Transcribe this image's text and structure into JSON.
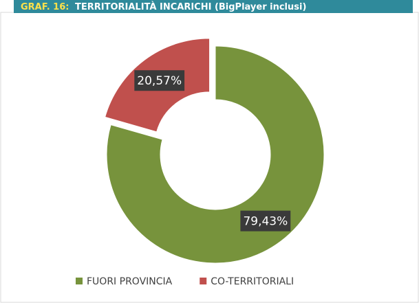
{
  "chart_data": {
    "type": "pie",
    "donut": true,
    "title_label": "GRAF. 16:",
    "title": "TERRITORIALITÀ INCARICHI (BigPlayer inclusi)",
    "categories": [
      "FUORI PROVINCIA",
      "CO-TERRITORIALI"
    ],
    "values": [
      79.43,
      20.57
    ],
    "value_labels": [
      "79,43%",
      "20,57%"
    ],
    "colors": [
      "#77933c",
      "#c0504d"
    ],
    "exploded": [
      false,
      true
    ],
    "legend": "bottom"
  }
}
